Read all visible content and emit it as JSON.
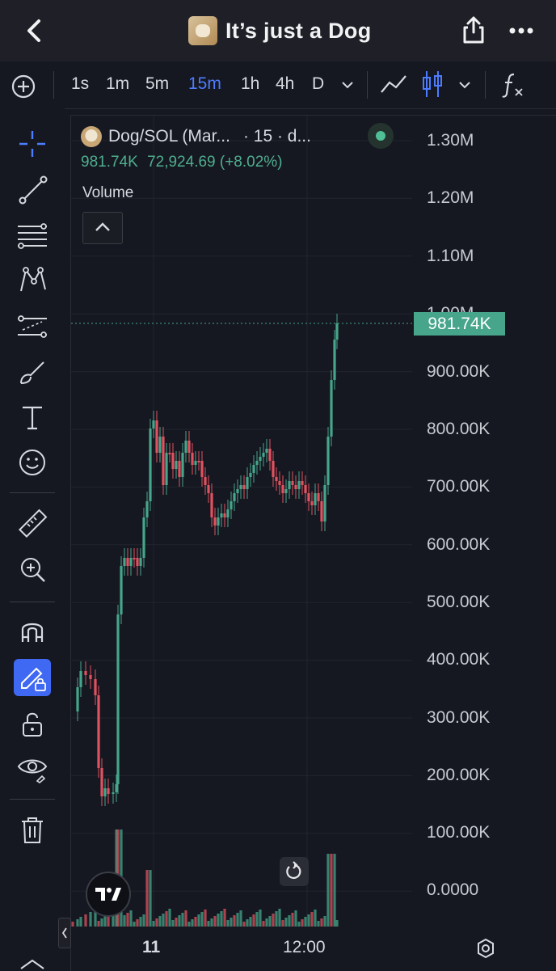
{
  "header": {
    "title": "It’s just a Dog"
  },
  "toolbar": {
    "timeframes": [
      "1s",
      "1m",
      "5m",
      "15m",
      "1h",
      "4h",
      "D"
    ],
    "active": "15m"
  },
  "legend": {
    "symbol": "Dog/SOL (Mar...",
    "interval": "· 15 · d...",
    "price": "981.74K",
    "change": "72,924.69 (+8.02%)",
    "volume_label": "Volume"
  },
  "price_axis": [
    "1.30M",
    "1.20M",
    "1.10M",
    "1.00M",
    "900.00K",
    "800.00K",
    "700.00K",
    "600.00K",
    "500.00K",
    "400.00K",
    "300.00K",
    "200.00K",
    "100.00K",
    "0.0000"
  ],
  "last_price": "981.74K",
  "time_axis": {
    "a": "11",
    "b": "12:00"
  },
  "colors": {
    "up": "#46a58a",
    "down": "#e0525f",
    "accent": "#4d7cff",
    "bg": "#161821"
  },
  "icons": [
    "back-icon",
    "share-icon",
    "more-icon",
    "crosshair-icon",
    "trend-line-icon",
    "fib-icon",
    "pattern-icon",
    "forecast-icon",
    "brush-icon",
    "text-icon",
    "emoji-icon",
    "ruler-icon",
    "zoom-icon",
    "magnet-icon",
    "lock-drawing-icon",
    "unlock-icon",
    "eye-icon",
    "trash-icon",
    "settings-icon",
    "reset-icon"
  ]
}
